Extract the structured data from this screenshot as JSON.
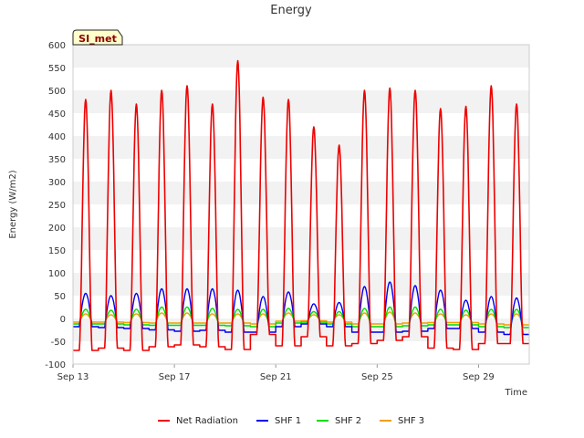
{
  "chart_data": {
    "type": "line",
    "title": "Energy",
    "xlabel": "Time",
    "ylabel": "Energy (W/m2)",
    "badge": "SI_met",
    "ylim": [
      -100,
      600
    ],
    "yticks": [
      -100,
      -50,
      0,
      50,
      100,
      150,
      200,
      250,
      300,
      350,
      400,
      450,
      500,
      550,
      600
    ],
    "xlim": [
      "2023-09-13",
      "2023-10-01"
    ],
    "xticks": [
      {
        "label": "Sep 13",
        "date": "2023-09-13"
      },
      {
        "label": "Sep 17",
        "date": "2023-09-17"
      },
      {
        "label": "Sep 21",
        "date": "2023-09-21"
      },
      {
        "label": "Sep 25",
        "date": "2023-09-25"
      },
      {
        "label": "Sep 29",
        "date": "2023-09-29"
      }
    ],
    "grid": "horizontal bands",
    "legend_position": "bottom",
    "days": [
      "2023-09-13",
      "2023-09-14",
      "2023-09-15",
      "2023-09-16",
      "2023-09-17",
      "2023-09-18",
      "2023-09-19",
      "2023-09-20",
      "2023-09-21",
      "2023-09-22",
      "2023-09-23",
      "2023-09-24",
      "2023-09-25",
      "2023-09-26",
      "2023-09-27",
      "2023-09-28",
      "2023-09-29",
      "2023-09-30"
    ],
    "series": [
      {
        "name": "Net Radiation",
        "color": "#ee0000",
        "daily_peak": [
          480,
          500,
          470,
          500,
          510,
          470,
          565,
          485,
          480,
          420,
          380,
          500,
          505,
          500,
          460,
          465,
          510,
          470
        ],
        "night_min": [
          -70,
          -65,
          -70,
          -62,
          -58,
          -62,
          -68,
          -35,
          -60,
          -40,
          -60,
          -55,
          -48,
          -40,
          -65,
          -68,
          -55,
          -55
        ]
      },
      {
        "name": "SHF 1",
        "color": "#0000ee",
        "daily_peak": [
          55,
          50,
          55,
          65,
          65,
          65,
          62,
          48,
          58,
          32,
          35,
          70,
          80,
          72,
          62,
          40,
          48,
          45
        ],
        "night_min": [
          -18,
          -20,
          -22,
          -25,
          -28,
          -26,
          -30,
          -30,
          -18,
          -12,
          -18,
          -30,
          -30,
          -28,
          -22,
          -22,
          -30,
          -35
        ]
      },
      {
        "name": "SHF 2",
        "color": "#00dd00",
        "daily_peak": [
          20,
          18,
          20,
          25,
          25,
          22,
          20,
          20,
          22,
          15,
          15,
          22,
          25,
          25,
          20,
          18,
          20,
          20
        ],
        "night_min": [
          -12,
          -12,
          -14,
          -15,
          -15,
          -15,
          -16,
          -18,
          -10,
          -8,
          -12,
          -18,
          -18,
          -16,
          -14,
          -14,
          -18,
          -20
        ]
      },
      {
        "name": "SHF 3",
        "color": "#f0a000",
        "daily_peak": [
          10,
          8,
          10,
          12,
          12,
          10,
          10,
          10,
          12,
          8,
          8,
          12,
          14,
          12,
          10,
          8,
          10,
          10
        ],
        "night_min": [
          -8,
          -8,
          -9,
          -10,
          -10,
          -10,
          -10,
          -12,
          -6,
          -5,
          -8,
          -12,
          -12,
          -10,
          -9,
          -9,
          -12,
          -14
        ]
      }
    ]
  }
}
